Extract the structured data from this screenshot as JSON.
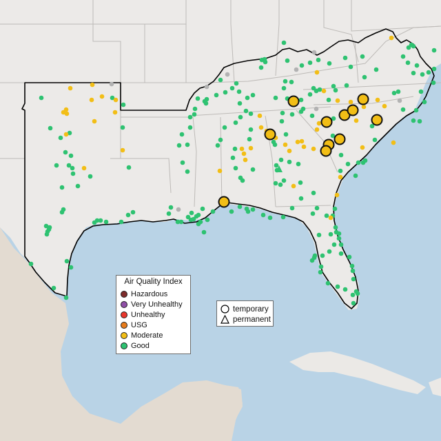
{
  "colors": {
    "land": "#e9e6e3",
    "land_us": "#eceae8",
    "water": "#b9d3e6",
    "state_border": "#bdbab7",
    "region_outline": "#000000",
    "mexico_land": "#e3dbd1",
    "cuba_land": "#ebe9e6",
    "hazardous": "#7e2b2b",
    "very_unhealthy": "#8f4fa6",
    "unhealthy": "#e8362c",
    "usg": "#e77c1c",
    "moderate": "#f2be16",
    "good": "#2ec271",
    "no_data": "#b2b2b2"
  },
  "legend": {
    "title": "Air Quality Index",
    "items": [
      {
        "label": "Hazardous",
        "color_key": "hazardous"
      },
      {
        "label": "Very Unhealthy",
        "color_key": "very_unhealthy"
      },
      {
        "label": "Unhealthy",
        "color_key": "unhealthy"
      },
      {
        "label": "USG",
        "color_key": "usg"
      },
      {
        "label": "Moderate",
        "color_key": "moderate"
      },
      {
        "label": "Good",
        "color_key": "good"
      }
    ]
  },
  "shape_legend": {
    "items": [
      {
        "label": "temporary",
        "shape": "circle-icon"
      },
      {
        "label": "permanent",
        "shape": "triangle-icon"
      }
    ]
  }
}
